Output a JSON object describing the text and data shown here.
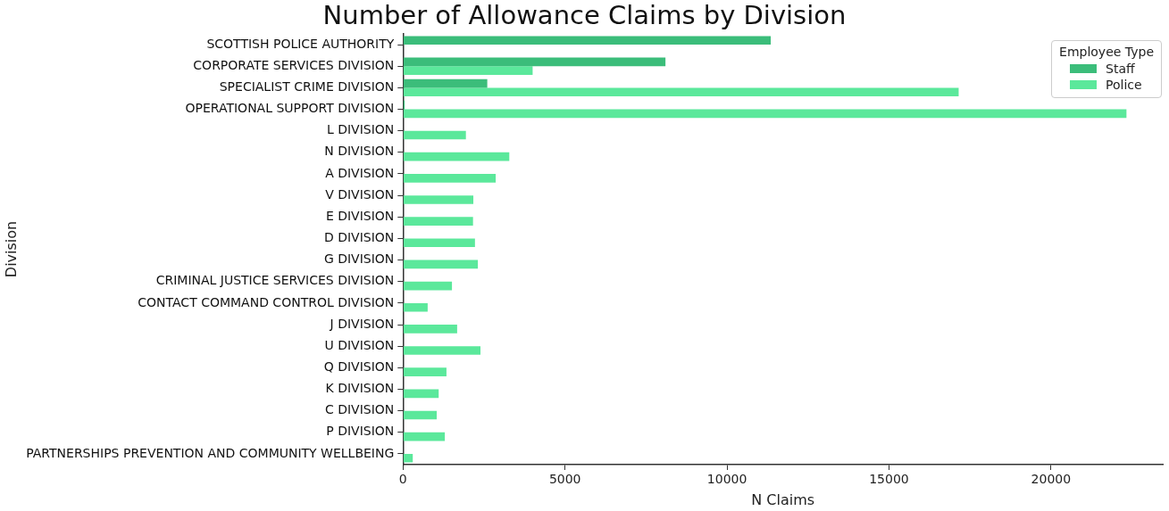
{
  "chart_data": {
    "type": "bar",
    "orientation": "horizontal",
    "title": "Number of Allowance Claims by Division",
    "xlabel": "N Claims",
    "ylabel": "Division",
    "legend_title": "Employee Type",
    "legend": "top right",
    "grid": false,
    "categories": [
      "SCOTTISH POLICE AUTHORITY",
      "CORPORATE SERVICES DIVISION",
      "SPECIALIST CRIME DIVISION",
      "OPERATIONAL SUPPORT DIVISION",
      "L DIVISION",
      "N DIVISION",
      "A DIVISION",
      "V DIVISION",
      "E DIVISION",
      "D DIVISION",
      "G DIVISION",
      "CRIMINAL JUSTICE SERVICES DIVISION",
      "CONTACT COMMAND CONTROL DIVISION",
      "J DIVISION",
      "U DIVISION",
      "Q DIVISION",
      "K DIVISION",
      "C DIVISION",
      "P DIVISION",
      "PARTNERSHIPS PREVENTION AND COMMUNITY WELLBEING"
    ],
    "series": [
      {
        "name": "Staff",
        "color": "#3bbd7a",
        "values": [
          11350,
          8100,
          2600,
          50,
          null,
          null,
          null,
          null,
          null,
          null,
          null,
          null,
          null,
          null,
          null,
          null,
          null,
          null,
          null,
          null
        ]
      },
      {
        "name": "Police",
        "color": "#5be89b",
        "values": [
          null,
          4000,
          17150,
          22330,
          1940,
          3280,
          2860,
          2170,
          2160,
          2220,
          2310,
          1510,
          760,
          1670,
          2390,
          1340,
          1100,
          1040,
          1290,
          300
        ]
      }
    ],
    "xlim": [
      0,
      23450
    ],
    "xticks": [
      0,
      5000,
      10000,
      15000,
      20000
    ]
  }
}
